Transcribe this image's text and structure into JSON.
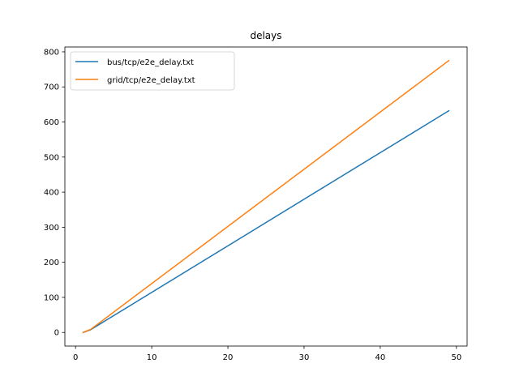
{
  "chart_data": {
    "type": "line",
    "title": "delays",
    "xlabel": "",
    "ylabel": "",
    "xlim": [
      -1.4,
      51.4
    ],
    "ylim": [
      -38.75,
      813.75
    ],
    "xticks": [
      0,
      10,
      20,
      30,
      40,
      50
    ],
    "yticks": [
      0,
      100,
      200,
      300,
      400,
      500,
      600,
      700,
      800
    ],
    "grid": false,
    "legend_position": "upper-left",
    "series": [
      {
        "name": "bus/tcp/e2e_delay.txt",
        "color": "#1f77b4",
        "points": [
          [
            1,
            0
          ],
          [
            2,
            8
          ],
          [
            49,
            632
          ]
        ]
      },
      {
        "name": "grid/tcp/e2e_delay.txt",
        "color": "#ff7f0e",
        "points": [
          [
            1,
            0
          ],
          [
            2,
            9
          ],
          [
            49,
            775
          ]
        ]
      }
    ]
  }
}
